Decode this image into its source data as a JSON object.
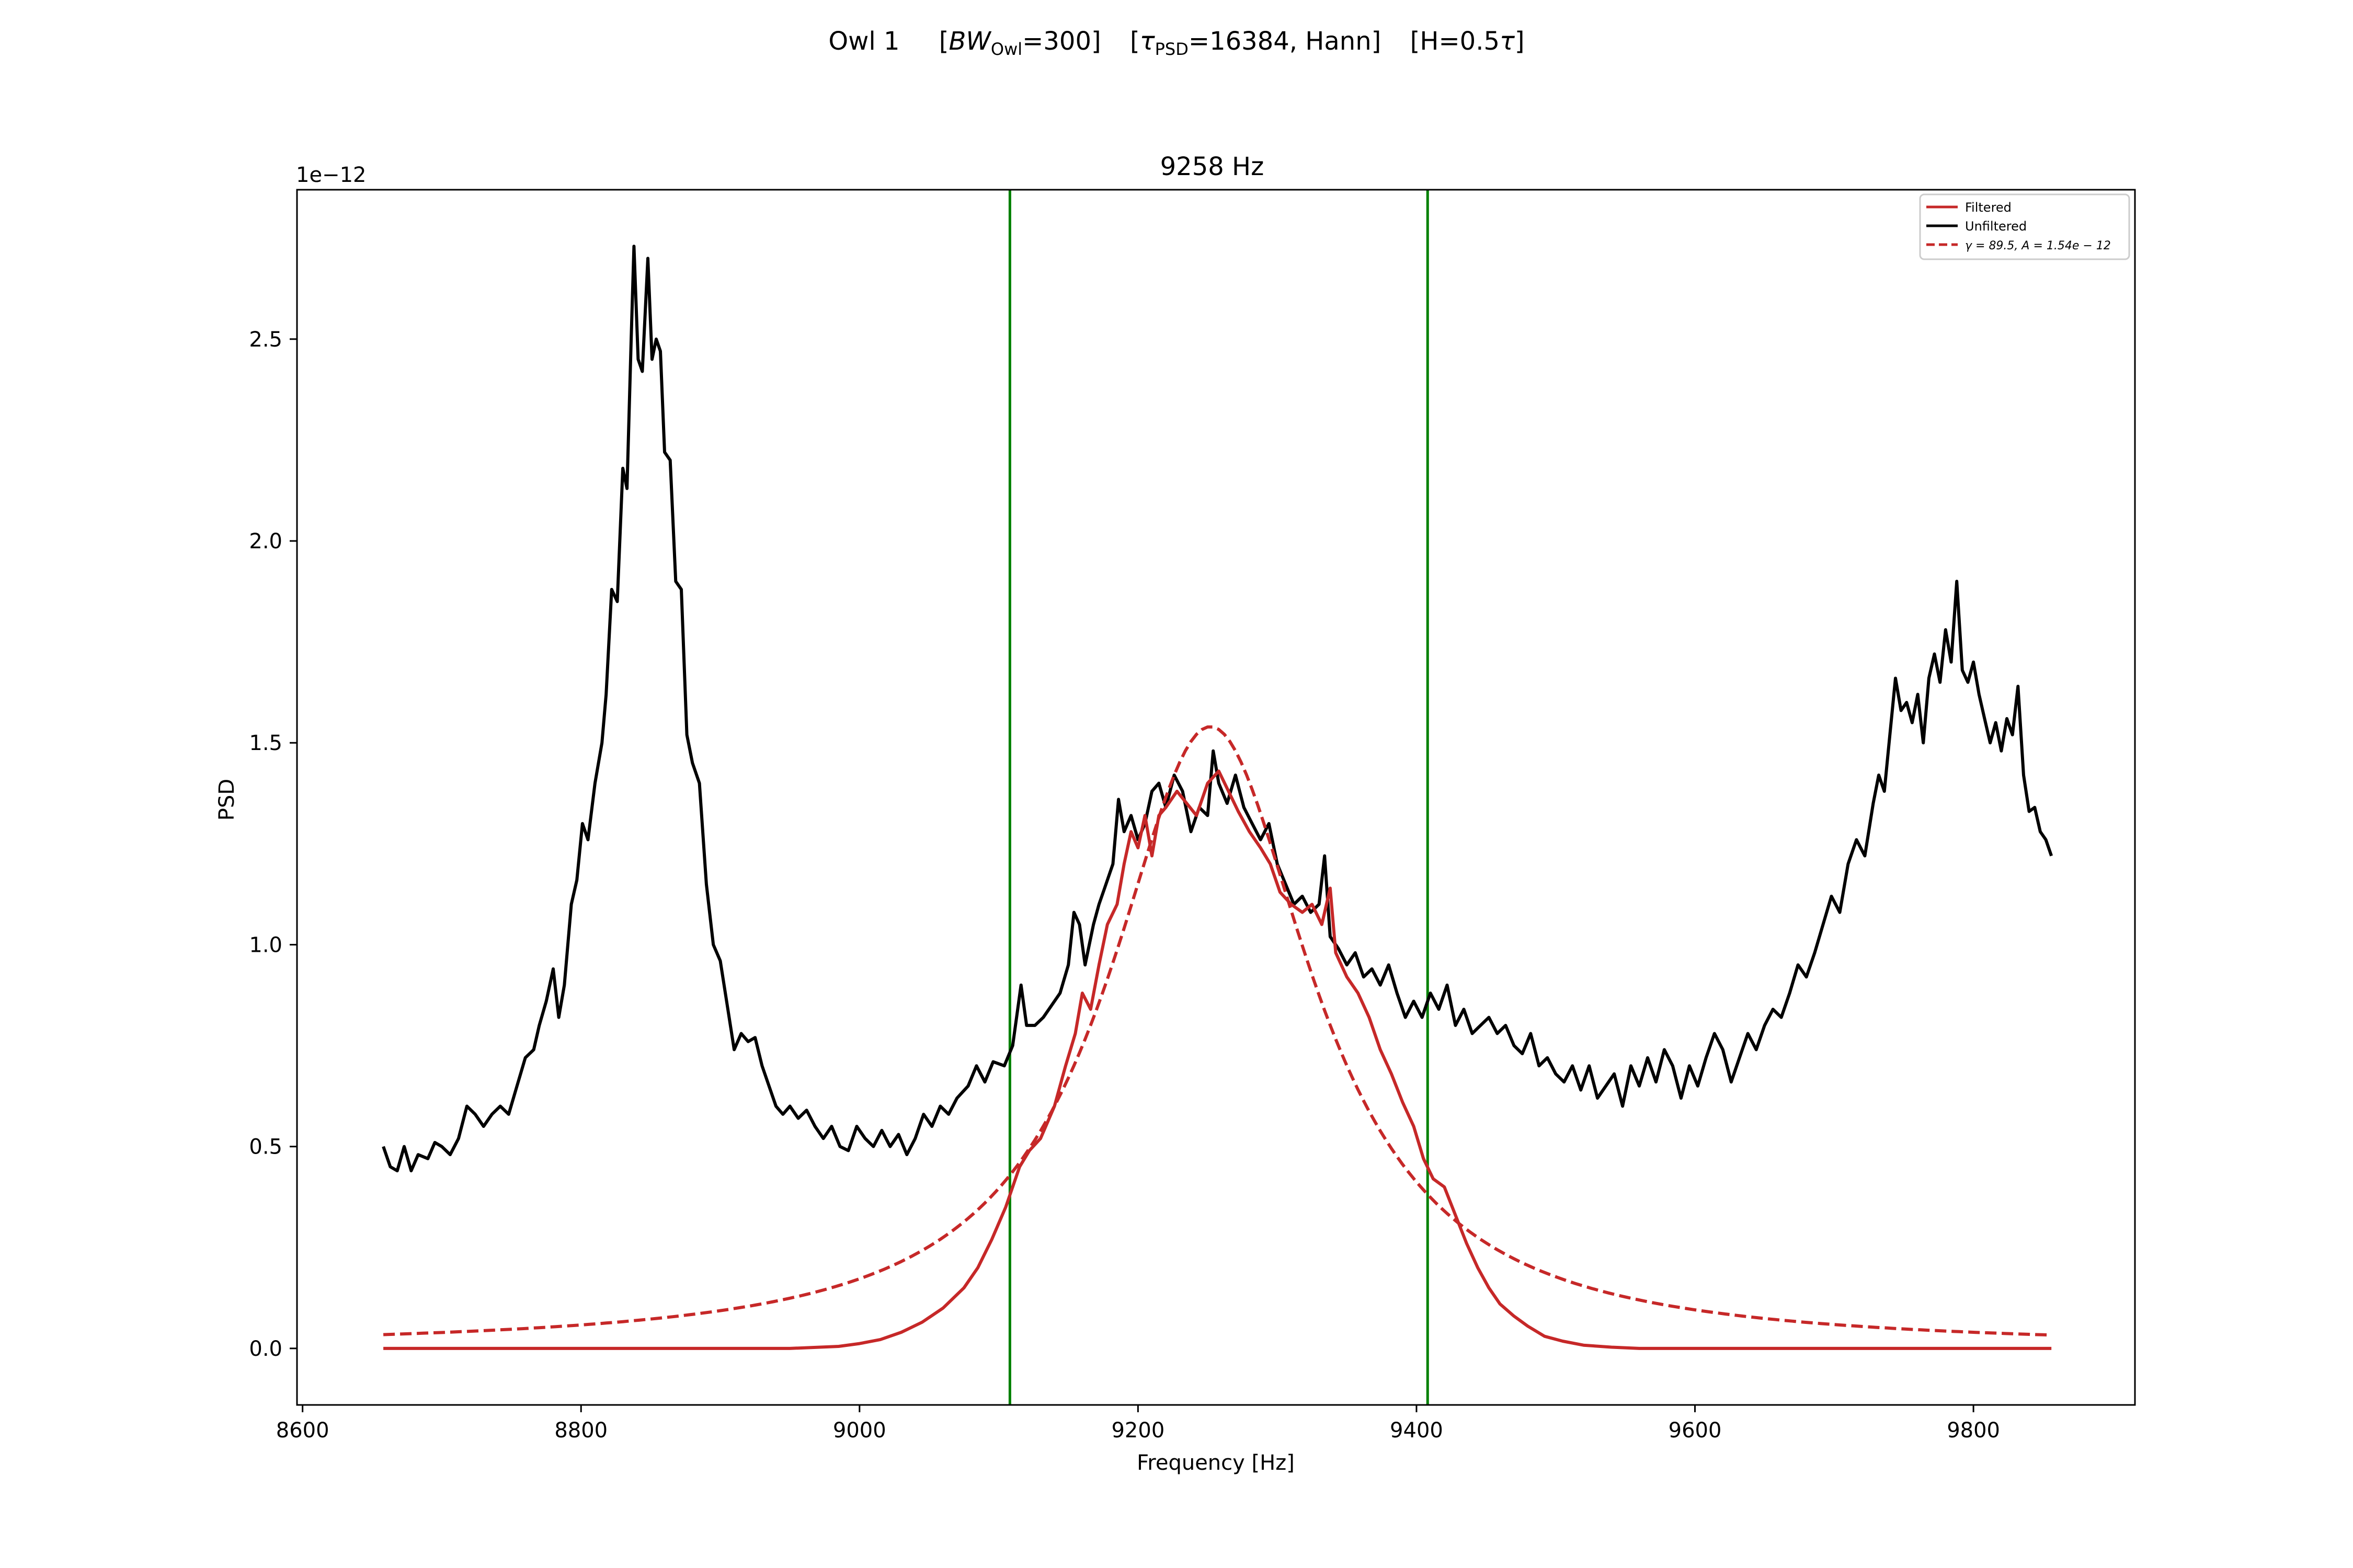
{
  "figure": {
    "suptitle_parts": {
      "name": "Owl 1",
      "bw_open": "[",
      "bw_var": "BW",
      "bw_sub": "Owl",
      "bw_val": "=300]",
      "tau_open": "[",
      "tau_var": "τ",
      "tau_sub": "PSD",
      "tau_val": "=16384, Hann]",
      "h_text": "[H=0.5",
      "h_var": "τ",
      "h_close": "]"
    }
  },
  "chart_data": {
    "type": "line",
    "title": "9258 Hz",
    "xlabel": "Frequency [Hz]",
    "ylabel": "PSD",
    "y_offset_text": "1e−12",
    "xlim": [
      8596,
      9916
    ],
    "ylim": [
      -0.14,
      2.87
    ],
    "x_ticks": [
      8600,
      8800,
      9000,
      9200,
      9400,
      9600,
      9800
    ],
    "x_tick_labels": [
      "8600",
      "8800",
      "9000",
      "9200",
      "9400",
      "9600",
      "9800"
    ],
    "y_ticks": [
      0.0,
      0.5,
      1.0,
      1.5,
      2.0,
      2.5
    ],
    "y_tick_labels": [
      "0.0",
      "0.5",
      "1.0",
      "1.5",
      "2.0",
      "2.5"
    ],
    "grid": false,
    "legend_position": "top-right",
    "vertical_lines": [
      {
        "x": 9108,
        "color": "#008000"
      },
      {
        "x": 9408,
        "color": "#008000"
      }
    ],
    "fit": {
      "center": 9252,
      "gamma": 89.5,
      "amplitude": 1.54
    },
    "series": [
      {
        "name": "Filtered",
        "color": "#c62828",
        "style": "solid",
        "points": [
          [
            8658,
            0.0
          ],
          [
            8950,
            0.0
          ],
          [
            8985,
            0.005
          ],
          [
            9000,
            0.012
          ],
          [
            9015,
            0.022
          ],
          [
            9030,
            0.04
          ],
          [
            9045,
            0.065
          ],
          [
            9060,
            0.1
          ],
          [
            9075,
            0.15
          ],
          [
            9085,
            0.2
          ],
          [
            9095,
            0.27
          ],
          [
            9105,
            0.35
          ],
          [
            9115,
            0.45
          ],
          [
            9122,
            0.49
          ],
          [
            9130,
            0.52
          ],
          [
            9140,
            0.6
          ],
          [
            9148,
            0.7
          ],
          [
            9155,
            0.78
          ],
          [
            9160,
            0.88
          ],
          [
            9166,
            0.84
          ],
          [
            9172,
            0.95
          ],
          [
            9178,
            1.05
          ],
          [
            9185,
            1.1
          ],
          [
            9190,
            1.2
          ],
          [
            9195,
            1.28
          ],
          [
            9200,
            1.24
          ],
          [
            9205,
            1.32
          ],
          [
            9210,
            1.22
          ],
          [
            9215,
            1.32
          ],
          [
            9220,
            1.34
          ],
          [
            9228,
            1.38
          ],
          [
            9235,
            1.35
          ],
          [
            9242,
            1.32
          ],
          [
            9250,
            1.4
          ],
          [
            9258,
            1.43
          ],
          [
            9265,
            1.38
          ],
          [
            9272,
            1.33
          ],
          [
            9280,
            1.28
          ],
          [
            9288,
            1.24
          ],
          [
            9295,
            1.2
          ],
          [
            9302,
            1.13
          ],
          [
            9310,
            1.1
          ],
          [
            9318,
            1.08
          ],
          [
            9325,
            1.1
          ],
          [
            9332,
            1.05
          ],
          [
            9338,
            1.14
          ],
          [
            9342,
            0.98
          ],
          [
            9350,
            0.92
          ],
          [
            9358,
            0.88
          ],
          [
            9366,
            0.82
          ],
          [
            9374,
            0.74
          ],
          [
            9382,
            0.68
          ],
          [
            9390,
            0.61
          ],
          [
            9398,
            0.55
          ],
          [
            9405,
            0.47
          ],
          [
            9412,
            0.42
          ],
          [
            9420,
            0.4
          ],
          [
            9428,
            0.33
          ],
          [
            9436,
            0.26
          ],
          [
            9444,
            0.2
          ],
          [
            9452,
            0.15
          ],
          [
            9460,
            0.11
          ],
          [
            9470,
            0.08
          ],
          [
            9480,
            0.055
          ],
          [
            9492,
            0.03
          ],
          [
            9505,
            0.018
          ],
          [
            9520,
            0.008
          ],
          [
            9540,
            0.003
          ],
          [
            9560,
            0.0
          ],
          [
            9856,
            0.0
          ]
        ]
      },
      {
        "name": "Unfiltered",
        "color": "#000000",
        "style": "solid",
        "points": [
          [
            8658,
            0.5
          ],
          [
            8663,
            0.45
          ],
          [
            8668,
            0.44
          ],
          [
            8673,
            0.5
          ],
          [
            8678,
            0.44
          ],
          [
            8683,
            0.48
          ],
          [
            8690,
            0.47
          ],
          [
            8695,
            0.51
          ],
          [
            8700,
            0.5
          ],
          [
            8706,
            0.48
          ],
          [
            8712,
            0.52
          ],
          [
            8718,
            0.6
          ],
          [
            8724,
            0.58
          ],
          [
            8730,
            0.55
          ],
          [
            8736,
            0.58
          ],
          [
            8742,
            0.6
          ],
          [
            8748,
            0.58
          ],
          [
            8754,
            0.65
          ],
          [
            8760,
            0.72
          ],
          [
            8766,
            0.74
          ],
          [
            8770,
            0.8
          ],
          [
            8775,
            0.86
          ],
          [
            8780,
            0.94
          ],
          [
            8784,
            0.82
          ],
          [
            8788,
            0.9
          ],
          [
            8793,
            1.1
          ],
          [
            8797,
            1.16
          ],
          [
            8801,
            1.3
          ],
          [
            8805,
            1.26
          ],
          [
            8810,
            1.4
          ],
          [
            8815,
            1.5
          ],
          [
            8818,
            1.62
          ],
          [
            8822,
            1.88
          ],
          [
            8826,
            1.85
          ],
          [
            8830,
            2.18
          ],
          [
            8833,
            2.13
          ],
          [
            8836,
            2.5
          ],
          [
            8838,
            2.73
          ],
          [
            8841,
            2.45
          ],
          [
            8844,
            2.42
          ],
          [
            8848,
            2.7
          ],
          [
            8851,
            2.45
          ],
          [
            8854,
            2.5
          ],
          [
            8857,
            2.47
          ],
          [
            8860,
            2.22
          ],
          [
            8864,
            2.2
          ],
          [
            8868,
            1.9
          ],
          [
            8872,
            1.88
          ],
          [
            8876,
            1.52
          ],
          [
            8880,
            1.45
          ],
          [
            8885,
            1.4
          ],
          [
            8890,
            1.15
          ],
          [
            8895,
            1.0
          ],
          [
            8900,
            0.96
          ],
          [
            8905,
            0.85
          ],
          [
            8910,
            0.74
          ],
          [
            8915,
            0.78
          ],
          [
            8920,
            0.76
          ],
          [
            8925,
            0.77
          ],
          [
            8930,
            0.7
          ],
          [
            8935,
            0.65
          ],
          [
            8940,
            0.6
          ],
          [
            8945,
            0.58
          ],
          [
            8950,
            0.6
          ],
          [
            8956,
            0.57
          ],
          [
            8962,
            0.59
          ],
          [
            8968,
            0.55
          ],
          [
            8974,
            0.52
          ],
          [
            8980,
            0.55
          ],
          [
            8986,
            0.5
          ],
          [
            8992,
            0.49
          ],
          [
            8998,
            0.55
          ],
          [
            9004,
            0.52
          ],
          [
            9010,
            0.5
          ],
          [
            9016,
            0.54
          ],
          [
            9022,
            0.5
          ],
          [
            9028,
            0.53
          ],
          [
            9034,
            0.48
          ],
          [
            9040,
            0.52
          ],
          [
            9046,
            0.58
          ],
          [
            9052,
            0.55
          ],
          [
            9058,
            0.6
          ],
          [
            9064,
            0.58
          ],
          [
            9070,
            0.62
          ],
          [
            9078,
            0.65
          ],
          [
            9084,
            0.7
          ],
          [
            9090,
            0.66
          ],
          [
            9096,
            0.71
          ],
          [
            9104,
            0.7
          ],
          [
            9110,
            0.75
          ],
          [
            9116,
            0.9
          ],
          [
            9120,
            0.8
          ],
          [
            9126,
            0.8
          ],
          [
            9132,
            0.82
          ],
          [
            9138,
            0.85
          ],
          [
            9144,
            0.88
          ],
          [
            9150,
            0.95
          ],
          [
            9154,
            1.08
          ],
          [
            9158,
            1.05
          ],
          [
            9162,
            0.95
          ],
          [
            9168,
            1.05
          ],
          [
            9172,
            1.1
          ],
          [
            9176,
            1.14
          ],
          [
            9182,
            1.2
          ],
          [
            9186,
            1.36
          ],
          [
            9190,
            1.28
          ],
          [
            9195,
            1.32
          ],
          [
            9200,
            1.26
          ],
          [
            9205,
            1.3
          ],
          [
            9210,
            1.38
          ],
          [
            9215,
            1.4
          ],
          [
            9220,
            1.34
          ],
          [
            9226,
            1.42
          ],
          [
            9232,
            1.38
          ],
          [
            9238,
            1.28
          ],
          [
            9244,
            1.34
          ],
          [
            9250,
            1.32
          ],
          [
            9254,
            1.48
          ],
          [
            9258,
            1.4
          ],
          [
            9264,
            1.35
          ],
          [
            9270,
            1.42
          ],
          [
            9276,
            1.34
          ],
          [
            9282,
            1.3
          ],
          [
            9288,
            1.26
          ],
          [
            9294,
            1.3
          ],
          [
            9300,
            1.2
          ],
          [
            9306,
            1.15
          ],
          [
            9312,
            1.1
          ],
          [
            9318,
            1.12
          ],
          [
            9324,
            1.08
          ],
          [
            9330,
            1.1
          ],
          [
            9334,
            1.22
          ],
          [
            9338,
            1.02
          ],
          [
            9344,
            0.99
          ],
          [
            9350,
            0.95
          ],
          [
            9356,
            0.98
          ],
          [
            9362,
            0.92
          ],
          [
            9368,
            0.94
          ],
          [
            9374,
            0.9
          ],
          [
            9380,
            0.95
          ],
          [
            9386,
            0.88
          ],
          [
            9392,
            0.82
          ],
          [
            9398,
            0.86
          ],
          [
            9404,
            0.82
          ],
          [
            9410,
            0.88
          ],
          [
            9416,
            0.84
          ],
          [
            9422,
            0.9
          ],
          [
            9428,
            0.8
          ],
          [
            9434,
            0.84
          ],
          [
            9440,
            0.78
          ],
          [
            9446,
            0.8
          ],
          [
            9452,
            0.82
          ],
          [
            9458,
            0.78
          ],
          [
            9464,
            0.8
          ],
          [
            9470,
            0.75
          ],
          [
            9476,
            0.73
          ],
          [
            9482,
            0.78
          ],
          [
            9488,
            0.7
          ],
          [
            9494,
            0.72
          ],
          [
            9500,
            0.68
          ],
          [
            9506,
            0.66
          ],
          [
            9512,
            0.7
          ],
          [
            9518,
            0.64
          ],
          [
            9524,
            0.7
          ],
          [
            9530,
            0.62
          ],
          [
            9536,
            0.65
          ],
          [
            9542,
            0.68
          ],
          [
            9548,
            0.6
          ],
          [
            9554,
            0.7
          ],
          [
            9560,
            0.65
          ],
          [
            9566,
            0.72
          ],
          [
            9572,
            0.66
          ],
          [
            9578,
            0.74
          ],
          [
            9584,
            0.7
          ],
          [
            9590,
            0.62
          ],
          [
            9596,
            0.7
          ],
          [
            9602,
            0.65
          ],
          [
            9608,
            0.72
          ],
          [
            9614,
            0.78
          ],
          [
            9620,
            0.74
          ],
          [
            9626,
            0.66
          ],
          [
            9632,
            0.72
          ],
          [
            9638,
            0.78
          ],
          [
            9644,
            0.74
          ],
          [
            9650,
            0.8
          ],
          [
            9656,
            0.84
          ],
          [
            9662,
            0.82
          ],
          [
            9668,
            0.88
          ],
          [
            9674,
            0.95
          ],
          [
            9680,
            0.92
          ],
          [
            9686,
            0.98
          ],
          [
            9692,
            1.05
          ],
          [
            9698,
            1.12
          ],
          [
            9704,
            1.08
          ],
          [
            9710,
            1.2
          ],
          [
            9716,
            1.26
          ],
          [
            9722,
            1.22
          ],
          [
            9728,
            1.35
          ],
          [
            9732,
            1.42
          ],
          [
            9736,
            1.38
          ],
          [
            9740,
            1.52
          ],
          [
            9744,
            1.66
          ],
          [
            9748,
            1.58
          ],
          [
            9752,
            1.6
          ],
          [
            9756,
            1.55
          ],
          [
            9760,
            1.62
          ],
          [
            9764,
            1.5
          ],
          [
            9768,
            1.66
          ],
          [
            9772,
            1.72
          ],
          [
            9776,
            1.65
          ],
          [
            9780,
            1.78
          ],
          [
            9784,
            1.7
          ],
          [
            9788,
            1.9
          ],
          [
            9792,
            1.68
          ],
          [
            9796,
            1.65
          ],
          [
            9800,
            1.7
          ],
          [
            9804,
            1.62
          ],
          [
            9808,
            1.56
          ],
          [
            9812,
            1.5
          ],
          [
            9816,
            1.55
          ],
          [
            9820,
            1.48
          ],
          [
            9824,
            1.56
          ],
          [
            9828,
            1.52
          ],
          [
            9832,
            1.64
          ],
          [
            9836,
            1.42
          ],
          [
            9840,
            1.33
          ],
          [
            9844,
            1.34
          ],
          [
            9848,
            1.28
          ],
          [
            9852,
            1.26
          ],
          [
            9856,
            1.22
          ]
        ]
      },
      {
        "name": "γ = 89.5, A = 1.54e − 12",
        "color": "#c62828",
        "style": "dashed",
        "points_from_fit": true
      }
    ]
  }
}
